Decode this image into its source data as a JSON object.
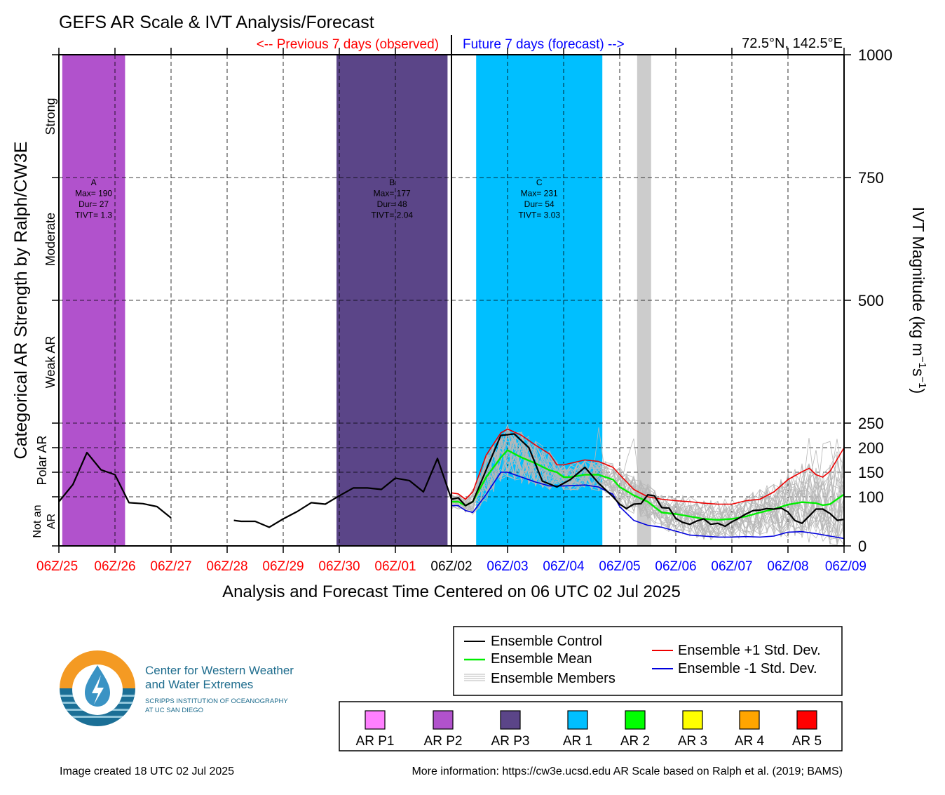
{
  "title": "GEFS AR Scale & IVT Analysis/Forecast",
  "header": {
    "previous_label": "<-- Previous 7 days (observed)",
    "future_label": "Future 7 days (forecast) -->",
    "location": "72.5°N, 142.5°E"
  },
  "left_axis": {
    "title": "Categorical AR Strength by Ralph/CW3E",
    "categories": [
      "Strong",
      "Moderate",
      "Weak AR",
      "Polar AR",
      "Not an",
      "AR"
    ]
  },
  "right_axis": {
    "title_main": "IVT Magnitude (kg m",
    "title_sup1": "−1",
    "title_mid": "s",
    "title_sup2": "−1",
    "title_end": ")",
    "ticks": [
      0,
      100,
      150,
      200,
      250,
      500,
      750,
      1000
    ]
  },
  "x_axis": {
    "title": "Analysis and Forecast Time Centered on 06 UTC 02 Jul 2025",
    "ticks": [
      {
        "label": "06Z/25",
        "color": "#ff0000"
      },
      {
        "label": "06Z/26",
        "color": "#ff0000"
      },
      {
        "label": "06Z/27",
        "color": "#ff0000"
      },
      {
        "label": "06Z/28",
        "color": "#ff0000"
      },
      {
        "label": "06Z/29",
        "color": "#ff0000"
      },
      {
        "label": "06Z/30",
        "color": "#ff0000"
      },
      {
        "label": "06Z/01",
        "color": "#ff0000"
      },
      {
        "label": "06Z/02",
        "color": "#000000"
      },
      {
        "label": "06Z/03",
        "color": "#0000ff"
      },
      {
        "label": "06Z/04",
        "color": "#0000ff"
      },
      {
        "label": "06Z/05",
        "color": "#0000ff"
      },
      {
        "label": "06Z/06",
        "color": "#0000ff"
      },
      {
        "label": "06Z/07",
        "color": "#0000ff"
      },
      {
        "label": "06Z/08",
        "color": "#0000ff"
      },
      {
        "label": "06Z/09",
        "color": "#0000ff"
      }
    ]
  },
  "events": [
    {
      "name": "A",
      "max": "Max= 190",
      "dur": "Dur= 27",
      "tivt": "TIVT= 1.3",
      "start_day": 0.06,
      "end_day": 1.18,
      "color": "#b152cc"
    },
    {
      "name": "B",
      "max": "Max= 177",
      "dur": "Dur= 48",
      "tivt": "TIVT= 2.04",
      "start_day": 4.95,
      "end_day": 6.93,
      "color": "#5b4588"
    },
    {
      "name": "C",
      "max": "Max= 231",
      "dur": "Dur= 54",
      "tivt": "TIVT= 3.03",
      "start_day": 7.44,
      "end_day": 9.69,
      "color": "#00bfff"
    }
  ],
  "gray_band": {
    "start_day": 10.31,
    "end_day": 10.56,
    "color": "#cccccc"
  },
  "chart_data": {
    "type": "line",
    "x_unit": "days since 06Z/25",
    "ylabel": "IVT Magnitude (kg m-1 s-1)",
    "ylim": [
      0,
      1000
    ],
    "series": [
      {
        "name": "Ensemble Control",
        "color": "#000000",
        "segments": [
          [
            [
              0,
              90
            ],
            [
              0.25,
              125
            ],
            [
              0.5,
              190
            ],
            [
              0.75,
              155
            ],
            [
              1,
              145
            ],
            [
              1.25,
              88
            ],
            [
              1.5,
              86
            ],
            [
              1.75,
              80
            ],
            [
              2,
              57
            ]
          ],
          [
            [
              3.12,
              52
            ],
            [
              3.25,
              50
            ],
            [
              3.5,
              50
            ],
            [
              3.75,
              38
            ],
            [
              4,
              55
            ],
            [
              4.25,
              70
            ],
            [
              4.5,
              88
            ],
            [
              4.75,
              85
            ],
            [
              5,
              102
            ],
            [
              5.25,
              118
            ],
            [
              5.5,
              118
            ],
            [
              5.75,
              115
            ],
            [
              6,
              138
            ],
            [
              6.25,
              133
            ],
            [
              6.5,
              110
            ],
            [
              6.75,
              178
            ],
            [
              7,
              95
            ],
            [
              7.12,
              98
            ],
            [
              7.25,
              82
            ],
            [
              7.38,
              90
            ],
            [
              7.62,
              155
            ],
            [
              7.88,
              225
            ],
            [
              8.12,
              228
            ],
            [
              8.38,
              200
            ],
            [
              8.62,
              132
            ],
            [
              8.88,
              120
            ],
            [
              9.12,
              135
            ],
            [
              9.38,
              160
            ],
            [
              9.62,
              128
            ],
            [
              9.88,
              100
            ],
            [
              10,
              85
            ],
            [
              10.12,
              76
            ],
            [
              10.25,
              85
            ],
            [
              10.38,
              86
            ],
            [
              10.5,
              104
            ],
            [
              10.62,
              102
            ],
            [
              10.75,
              78
            ],
            [
              10.88,
              77
            ],
            [
              11,
              56
            ],
            [
              11.12,
              48
            ],
            [
              11.25,
              44
            ],
            [
              11.38,
              51
            ],
            [
              11.5,
              55
            ],
            [
              11.62,
              44
            ],
            [
              11.75,
              46
            ],
            [
              11.88,
              40
            ],
            [
              12,
              49
            ],
            [
              12.12,
              56
            ],
            [
              12.25,
              65
            ],
            [
              12.38,
              72
            ],
            [
              12.5,
              73
            ],
            [
              12.62,
              76
            ],
            [
              12.75,
              75
            ],
            [
              12.88,
              77
            ],
            [
              13,
              69
            ],
            [
              13.12,
              52
            ],
            [
              13.25,
              46
            ],
            [
              13.38,
              61
            ],
            [
              13.5,
              75
            ],
            [
              13.62,
              75
            ],
            [
              13.75,
              66
            ],
            [
              13.88,
              52
            ],
            [
              14,
              54
            ]
          ]
        ]
      },
      {
        "name": "Ensemble Mean",
        "color": "#00ee00",
        "segments": [
          [
            [
              7,
              90
            ],
            [
              7.12,
              90
            ],
            [
              7.25,
              82
            ],
            [
              7.38,
              90
            ],
            [
              7.62,
              140
            ],
            [
              7.88,
              180
            ],
            [
              8,
              195
            ],
            [
              8.25,
              180
            ],
            [
              8.5,
              168
            ],
            [
              8.75,
              154
            ],
            [
              8.88,
              150
            ],
            [
              9,
              140
            ],
            [
              9.12,
              140
            ],
            [
              9.38,
              145
            ],
            [
              9.62,
              145
            ],
            [
              9.88,
              135
            ],
            [
              10,
              120
            ],
            [
              10.25,
              103
            ],
            [
              10.5,
              90
            ],
            [
              10.75,
              68
            ],
            [
              11,
              65
            ],
            [
              11.25,
              60
            ],
            [
              11.5,
              55
            ],
            [
              11.75,
              53
            ],
            [
              12,
              55
            ],
            [
              12.25,
              60
            ],
            [
              12.5,
              68
            ],
            [
              12.75,
              75
            ],
            [
              13,
              84
            ],
            [
              13.25,
              89
            ],
            [
              13.5,
              87
            ],
            [
              13.62,
              83
            ],
            [
              13.75,
              85
            ],
            [
              14,
              105
            ]
          ]
        ]
      },
      {
        "name": "Ensemble +1 Std. Dev.",
        "color": "#ee0000",
        "segments": [
          [
            [
              7,
              108
            ],
            [
              7.12,
              106
            ],
            [
              7.25,
              95
            ],
            [
              7.38,
              110
            ],
            [
              7.62,
              185
            ],
            [
              7.88,
              230
            ],
            [
              8,
              238
            ],
            [
              8.25,
              225
            ],
            [
              8.5,
              205
            ],
            [
              8.75,
              187
            ],
            [
              8.88,
              165
            ],
            [
              9,
              165
            ],
            [
              9.38,
              175
            ],
            [
              9.62,
              172
            ],
            [
              9.88,
              160
            ],
            [
              10,
              145
            ],
            [
              10.25,
              115
            ],
            [
              10.5,
              100
            ],
            [
              10.75,
              95
            ],
            [
              11,
              92
            ],
            [
              11.25,
              90
            ],
            [
              11.5,
              87
            ],
            [
              11.75,
              85
            ],
            [
              12,
              85
            ],
            [
              12.25,
              92
            ],
            [
              12.5,
              95
            ],
            [
              12.75,
              110
            ],
            [
              13,
              135
            ],
            [
              13.25,
              151
            ],
            [
              13.38,
              158
            ],
            [
              13.5,
              145
            ],
            [
              13.62,
              140
            ],
            [
              13.75,
              152
            ],
            [
              14,
              200
            ]
          ]
        ]
      },
      {
        "name": "Ensemble -1 Std. Dev.",
        "color": "#0000dd",
        "segments": [
          [
            [
              7,
              82
            ],
            [
              7.12,
              82
            ],
            [
              7.25,
              72
            ],
            [
              7.38,
              68
            ],
            [
              7.62,
              105
            ],
            [
              7.88,
              150
            ],
            [
              8,
              150
            ],
            [
              8.25,
              140
            ],
            [
              8.5,
              130
            ],
            [
              8.75,
              122
            ],
            [
              9,
              122
            ],
            [
              9.38,
              124
            ],
            [
              9.62,
              120
            ],
            [
              9.88,
              105
            ],
            [
              10,
              80
            ],
            [
              10.25,
              52
            ],
            [
              10.5,
              42
            ],
            [
              10.75,
              38
            ],
            [
              11,
              30
            ],
            [
              11.25,
              22
            ],
            [
              11.5,
              20
            ],
            [
              11.75,
              18
            ],
            [
              12,
              18
            ],
            [
              12.25,
              19
            ],
            [
              12.5,
              18
            ],
            [
              12.75,
              20
            ],
            [
              13,
              28
            ],
            [
              13.25,
              29
            ],
            [
              13.5,
              25
            ],
            [
              13.75,
              20
            ],
            [
              14,
              15
            ]
          ]
        ]
      }
    ]
  },
  "legend": {
    "items": [
      {
        "label": "Ensemble Control",
        "color": "#000000"
      },
      {
        "label": "Ensemble Mean",
        "color": "#00ee00"
      },
      {
        "label": "Ensemble Members",
        "color": "#b0b0b0"
      },
      {
        "label": "Ensemble +1 Std. Dev.",
        "color": "#ee0000"
      },
      {
        "label": "Ensemble -1 Std. Dev.",
        "color": "#0000dd"
      }
    ]
  },
  "ar_legend": [
    {
      "label": "AR P1",
      "color": "#ff80ff"
    },
    {
      "label": "AR P2",
      "color": "#b152cc"
    },
    {
      "label": "AR P3",
      "color": "#5b4588"
    },
    {
      "label": "AR 1",
      "color": "#00bfff"
    },
    {
      "label": "AR 2",
      "color": "#00ff00"
    },
    {
      "label": "AR 3",
      "color": "#ffff00"
    },
    {
      "label": "AR 4",
      "color": "#ffa500"
    },
    {
      "label": "AR 5",
      "color": "#ff0000"
    }
  ],
  "logo": {
    "line1": "Center for Western Weather",
    "line2": "and Water Extremes",
    "line3": "SCRIPPS INSTITUTION OF OCEANOGRAPHY",
    "line4": "AT UC SAN DIEGO"
  },
  "footer": {
    "created": "Image created 18 UTC 02 Jul 2025",
    "info": "More information: https://cw3e.ucsd.edu AR Scale based on Ralph et al. (2019; BAMS)"
  }
}
